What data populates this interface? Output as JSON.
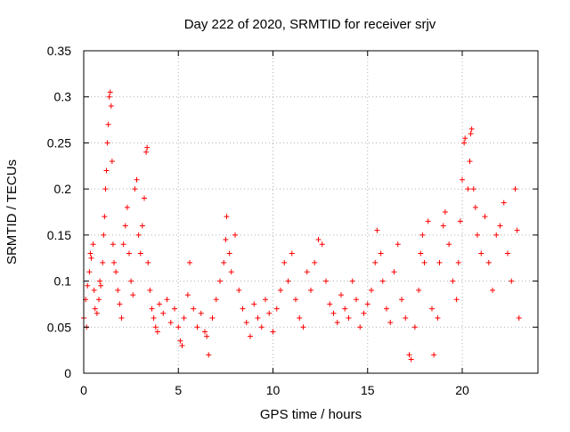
{
  "chart_data": {
    "type": "scatter",
    "title": "Day 222 of 2020, SRMTID for receiver srjv",
    "xlabel": "GPS time / hours",
    "ylabel": "SRMTID / TECUs",
    "xlim": [
      0,
      24
    ],
    "ylim": [
      0,
      0.35
    ],
    "xticks": [
      0,
      5,
      10,
      15,
      20
    ],
    "xtick_labels": [
      "0",
      "5",
      "10",
      "15",
      "20"
    ],
    "yticks": [
      0,
      0.05,
      0.1,
      0.15,
      0.2,
      0.25,
      0.3,
      0.35
    ],
    "ytick_labels": [
      "0",
      "0.05",
      "0.1",
      "0.15",
      "0.2",
      "0.25",
      "0.3",
      "0.35"
    ],
    "grid": true,
    "marker": "+",
    "color": "#ff0000",
    "series": [
      {
        "name": "srjv",
        "points": [
          [
            0.0,
            0.06
          ],
          [
            0.1,
            0.08
          ],
          [
            0.15,
            0.05
          ],
          [
            0.2,
            0.095
          ],
          [
            0.3,
            0.11
          ],
          [
            0.35,
            0.13
          ],
          [
            0.4,
            0.125
          ],
          [
            0.5,
            0.14
          ],
          [
            0.55,
            0.09
          ],
          [
            0.6,
            0.07
          ],
          [
            0.7,
            0.065
          ],
          [
            0.8,
            0.08
          ],
          [
            0.85,
            0.1
          ],
          [
            0.9,
            0.095
          ],
          [
            1.0,
            0.12
          ],
          [
            1.05,
            0.15
          ],
          [
            1.1,
            0.17
          ],
          [
            1.15,
            0.2
          ],
          [
            1.2,
            0.22
          ],
          [
            1.25,
            0.25
          ],
          [
            1.3,
            0.27
          ],
          [
            1.35,
            0.3
          ],
          [
            1.4,
            0.305
          ],
          [
            1.45,
            0.29
          ],
          [
            1.5,
            0.23
          ],
          [
            1.55,
            0.14
          ],
          [
            1.6,
            0.12
          ],
          [
            1.7,
            0.11
          ],
          [
            1.8,
            0.09
          ],
          [
            1.9,
            0.075
          ],
          [
            2.0,
            0.06
          ],
          [
            2.1,
            0.14
          ],
          [
            2.2,
            0.16
          ],
          [
            2.3,
            0.18
          ],
          [
            2.4,
            0.13
          ],
          [
            2.5,
            0.1
          ],
          [
            2.6,
            0.085
          ],
          [
            2.7,
            0.2
          ],
          [
            2.8,
            0.21
          ],
          [
            2.9,
            0.15
          ],
          [
            3.0,
            0.13
          ],
          [
            3.1,
            0.16
          ],
          [
            3.2,
            0.19
          ],
          [
            3.3,
            0.24
          ],
          [
            3.35,
            0.245
          ],
          [
            3.4,
            0.12
          ],
          [
            3.5,
            0.09
          ],
          [
            3.6,
            0.07
          ],
          [
            3.7,
            0.06
          ],
          [
            3.8,
            0.05
          ],
          [
            3.9,
            0.045
          ],
          [
            4.0,
            0.075
          ],
          [
            4.2,
            0.065
          ],
          [
            4.4,
            0.08
          ],
          [
            4.6,
            0.055
          ],
          [
            4.8,
            0.07
          ],
          [
            5.0,
            0.05
          ],
          [
            5.1,
            0.035
          ],
          [
            5.2,
            0.03
          ],
          [
            5.3,
            0.06
          ],
          [
            5.5,
            0.085
          ],
          [
            5.6,
            0.12
          ],
          [
            5.8,
            0.07
          ],
          [
            6.0,
            0.05
          ],
          [
            6.2,
            0.065
          ],
          [
            6.4,
            0.045
          ],
          [
            6.5,
            0.04
          ],
          [
            6.6,
            0.02
          ],
          [
            6.8,
            0.06
          ],
          [
            7.0,
            0.08
          ],
          [
            7.2,
            0.1
          ],
          [
            7.4,
            0.12
          ],
          [
            7.5,
            0.145
          ],
          [
            7.55,
            0.17
          ],
          [
            7.7,
            0.13
          ],
          [
            7.8,
            0.11
          ],
          [
            8.0,
            0.15
          ],
          [
            8.2,
            0.09
          ],
          [
            8.4,
            0.07
          ],
          [
            8.6,
            0.055
          ],
          [
            8.8,
            0.04
          ],
          [
            9.0,
            0.075
          ],
          [
            9.2,
            0.06
          ],
          [
            9.4,
            0.05
          ],
          [
            9.6,
            0.08
          ],
          [
            9.8,
            0.065
          ],
          [
            10.0,
            0.045
          ],
          [
            10.2,
            0.07
          ],
          [
            10.4,
            0.09
          ],
          [
            10.6,
            0.12
          ],
          [
            10.8,
            0.1
          ],
          [
            11.0,
            0.13
          ],
          [
            11.2,
            0.08
          ],
          [
            11.4,
            0.06
          ],
          [
            11.6,
            0.05
          ],
          [
            11.8,
            0.11
          ],
          [
            12.0,
            0.09
          ],
          [
            12.2,
            0.12
          ],
          [
            12.4,
            0.145
          ],
          [
            12.6,
            0.14
          ],
          [
            12.8,
            0.1
          ],
          [
            13.0,
            0.075
          ],
          [
            13.2,
            0.065
          ],
          [
            13.4,
            0.055
          ],
          [
            13.6,
            0.085
          ],
          [
            13.8,
            0.07
          ],
          [
            14.0,
            0.06
          ],
          [
            14.2,
            0.1
          ],
          [
            14.4,
            0.08
          ],
          [
            14.6,
            0.05
          ],
          [
            14.8,
            0.065
          ],
          [
            15.0,
            0.075
          ],
          [
            15.2,
            0.09
          ],
          [
            15.4,
            0.12
          ],
          [
            15.5,
            0.155
          ],
          [
            15.7,
            0.13
          ],
          [
            15.8,
            0.1
          ],
          [
            16.0,
            0.07
          ],
          [
            16.2,
            0.055
          ],
          [
            16.4,
            0.11
          ],
          [
            16.6,
            0.14
          ],
          [
            16.8,
            0.08
          ],
          [
            17.0,
            0.06
          ],
          [
            17.2,
            0.02
          ],
          [
            17.3,
            0.015
          ],
          [
            17.5,
            0.05
          ],
          [
            17.7,
            0.09
          ],
          [
            17.8,
            0.13
          ],
          [
            17.9,
            0.15
          ],
          [
            18.0,
            0.12
          ],
          [
            18.2,
            0.165
          ],
          [
            18.4,
            0.07
          ],
          [
            18.5,
            0.02
          ],
          [
            18.7,
            0.06
          ],
          [
            18.8,
            0.12
          ],
          [
            19.0,
            0.16
          ],
          [
            19.1,
            0.175
          ],
          [
            19.3,
            0.14
          ],
          [
            19.5,
            0.1
          ],
          [
            19.7,
            0.08
          ],
          [
            19.8,
            0.12
          ],
          [
            19.9,
            0.165
          ],
          [
            20.0,
            0.21
          ],
          [
            20.1,
            0.25
          ],
          [
            20.15,
            0.255
          ],
          [
            20.3,
            0.2
          ],
          [
            20.4,
            0.23
          ],
          [
            20.45,
            0.26
          ],
          [
            20.5,
            0.265
          ],
          [
            20.6,
            0.2
          ],
          [
            20.7,
            0.18
          ],
          [
            20.8,
            0.15
          ],
          [
            21.0,
            0.13
          ],
          [
            21.2,
            0.17
          ],
          [
            21.4,
            0.12
          ],
          [
            21.6,
            0.09
          ],
          [
            21.8,
            0.15
          ],
          [
            22.0,
            0.16
          ],
          [
            22.2,
            0.185
          ],
          [
            22.4,
            0.13
          ],
          [
            22.6,
            0.1
          ],
          [
            22.8,
            0.2
          ],
          [
            22.9,
            0.155
          ],
          [
            23.0,
            0.06
          ]
        ]
      }
    ]
  }
}
